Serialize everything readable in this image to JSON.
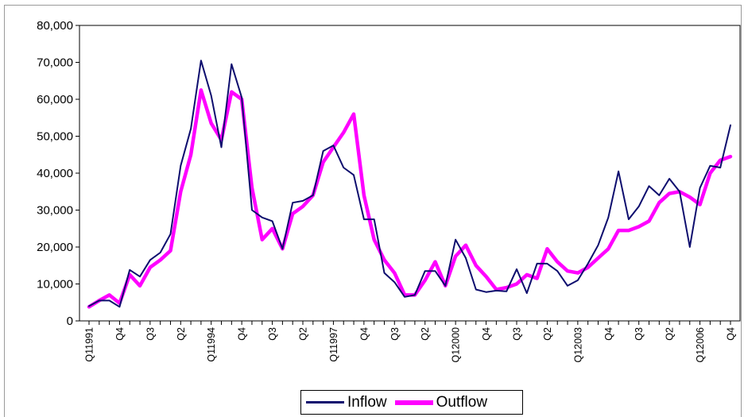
{
  "chart_data": {
    "type": "line",
    "ylim": [
      0,
      80000
    ],
    "y_ticks": [
      "0",
      "10,000",
      "20,000",
      "30,000",
      "40,000",
      "50,000",
      "60,000",
      "70,000",
      "80,000"
    ],
    "x_tick_labels": [
      "Q11991",
      "Q4",
      "Q3",
      "Q2",
      "Q11994",
      "Q4",
      "Q3",
      "Q2",
      "Q11997",
      "Q4",
      "Q3",
      "Q2",
      "Q12000",
      "Q4",
      "Q3",
      "Q2",
      "Q12003",
      "Q4",
      "Q3",
      "Q2",
      "Q12006",
      "Q4"
    ],
    "x_tick_positions": [
      0,
      3,
      6,
      9,
      12,
      15,
      18,
      21,
      24,
      27,
      30,
      33,
      36,
      39,
      42,
      45,
      48,
      51,
      54,
      57,
      60,
      63
    ],
    "grid": false,
    "legend_position": "bottom-center",
    "series": [
      {
        "name": "Inflow",
        "color": "#0d0d6e",
        "values": [
          4000,
          5500,
          5500,
          3800,
          13800,
          12000,
          16500,
          18500,
          23500,
          42000,
          52000,
          70500,
          61000,
          47000,
          69500,
          60500,
          30000,
          28000,
          27000,
          19500,
          32000,
          32500,
          34000,
          46000,
          47500,
          41500,
          39500,
          27500,
          27500,
          13000,
          10500,
          6500,
          7000,
          13500,
          13500,
          9500,
          22000,
          17000,
          8500,
          7800,
          8200,
          8000,
          14000,
          7500,
          15500,
          15500,
          13500,
          9500,
          11000,
          15500,
          20500,
          28000,
          40500,
          27500,
          31000,
          36500,
          34000,
          38500,
          35000,
          20000,
          36000,
          42000,
          41500,
          53000
        ]
      },
      {
        "name": "Outflow",
        "color": "#ff00ff",
        "values": [
          3800,
          5500,
          7000,
          4800,
          12500,
          9500,
          14500,
          16500,
          19000,
          35000,
          45000,
          62500,
          53500,
          49000,
          62000,
          60000,
          36000,
          22000,
          25000,
          19500,
          29000,
          31000,
          34000,
          43000,
          47000,
          51000,
          56000,
          34000,
          22000,
          16500,
          13000,
          7000,
          7000,
          11000,
          16000,
          9500,
          17500,
          20500,
          15000,
          12000,
          8500,
          9000,
          10000,
          12500,
          11500,
          19500,
          16000,
          13500,
          13000,
          14500,
          17000,
          19500,
          24500,
          24500,
          25500,
          27000,
          32000,
          34500,
          35000,
          33500,
          31500,
          40000,
          43500,
          44500
        ]
      }
    ]
  }
}
